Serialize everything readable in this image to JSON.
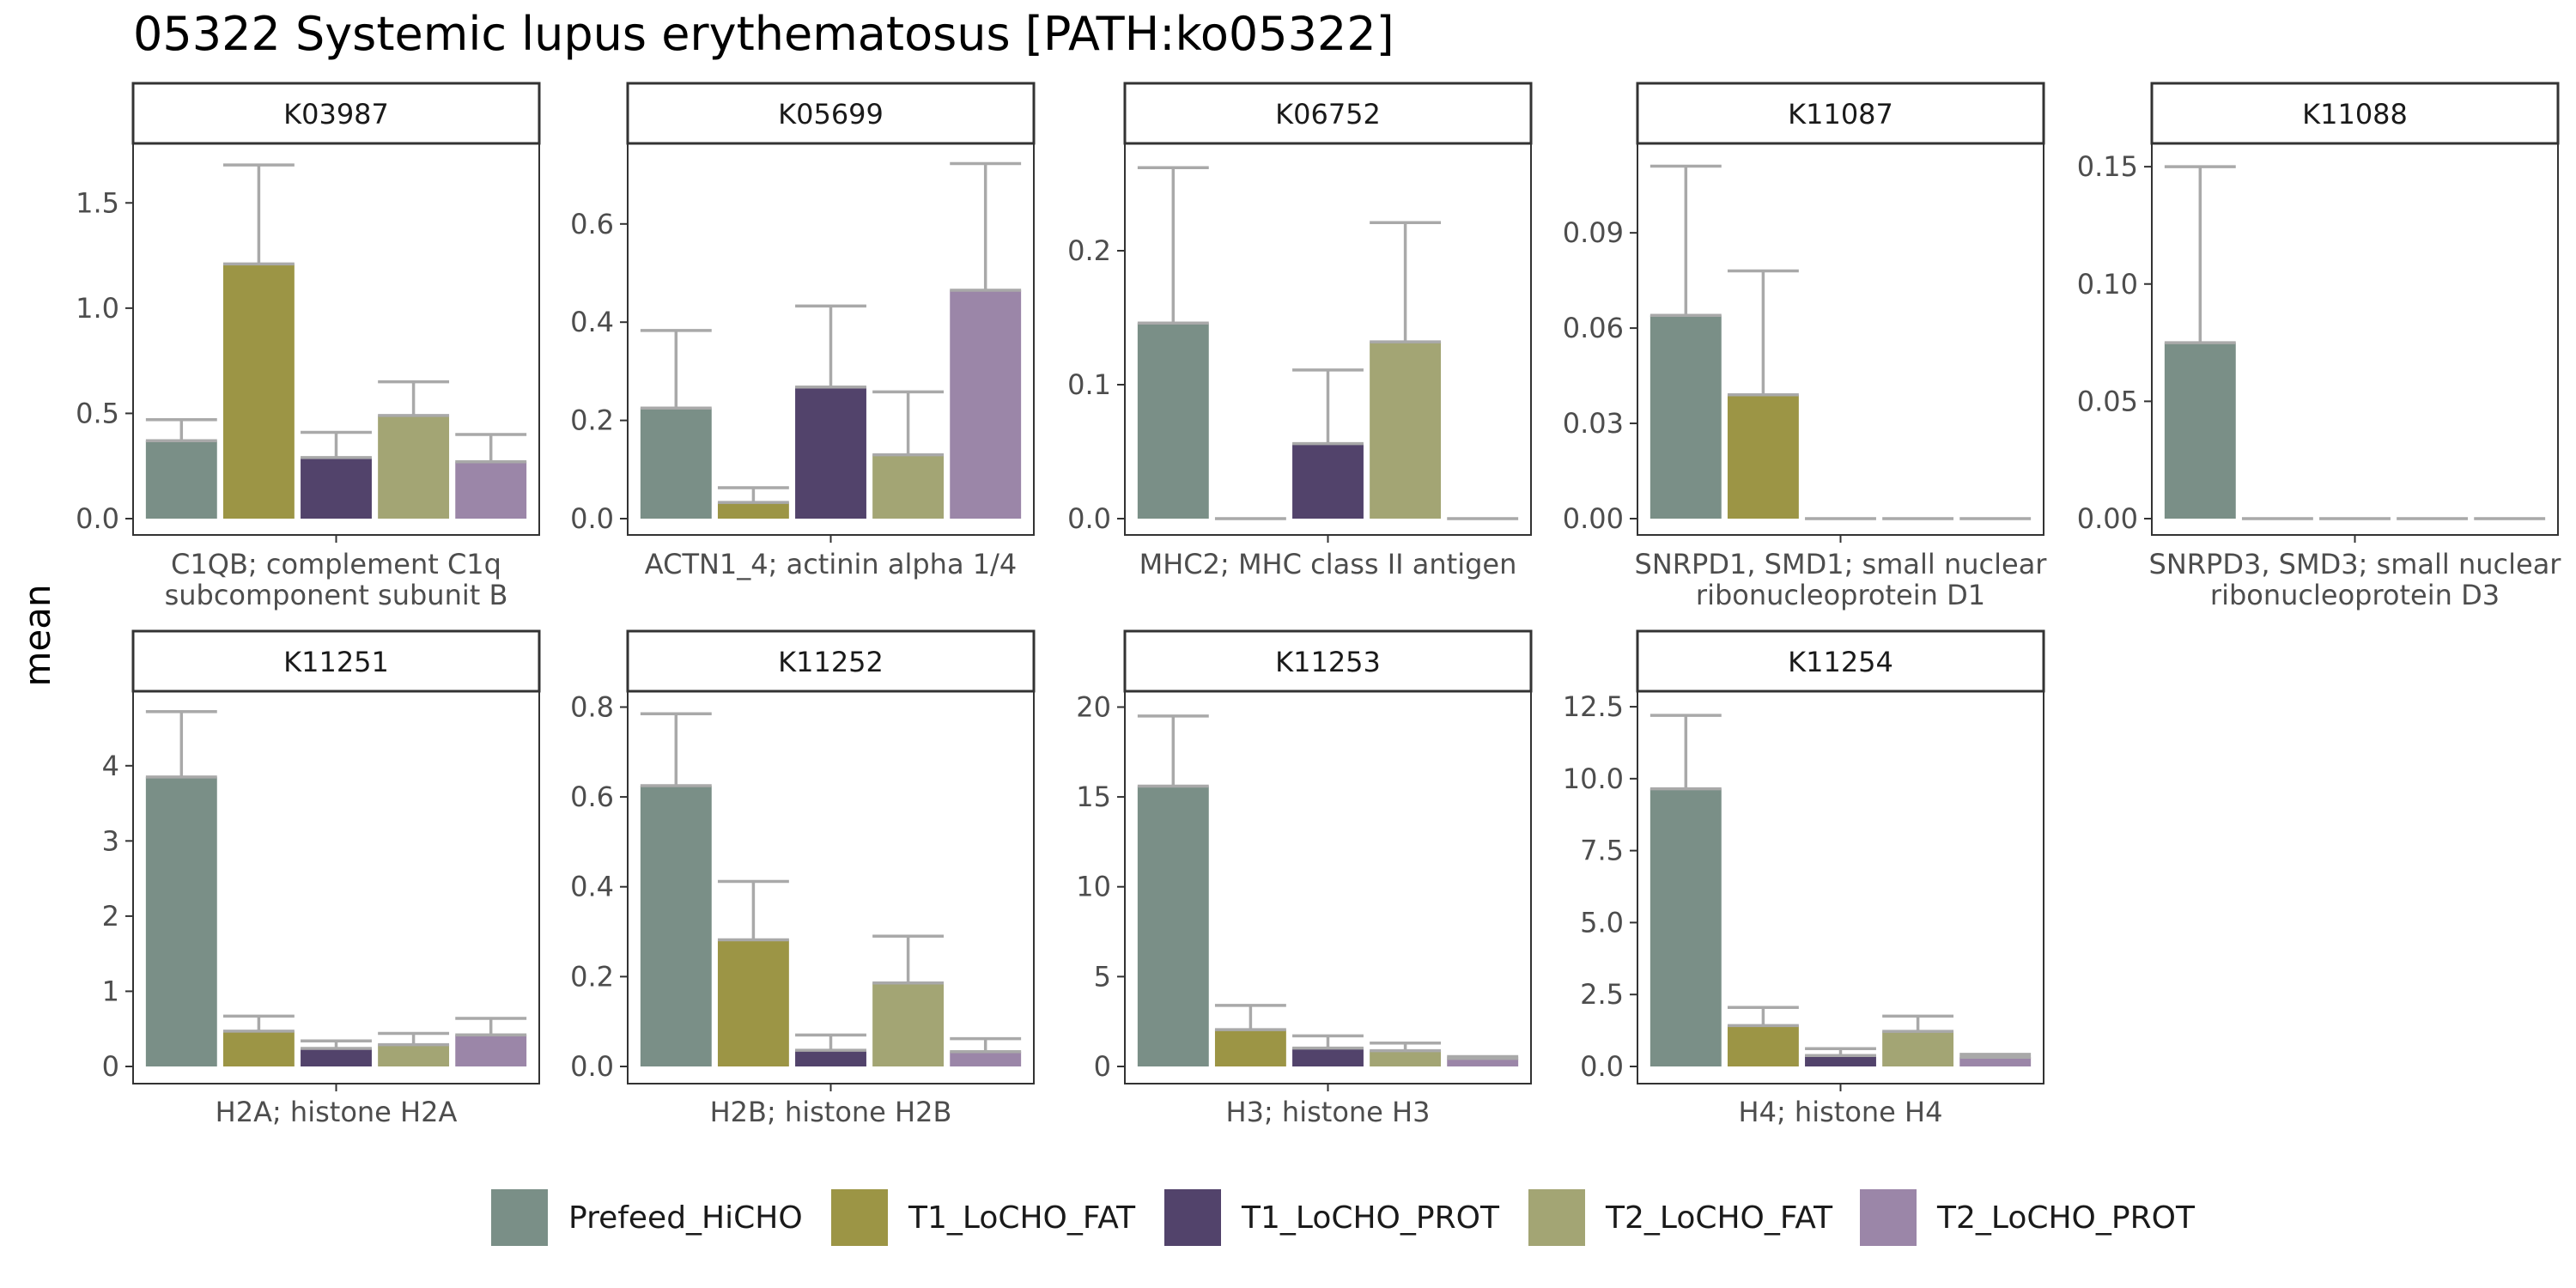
{
  "title": "05322 Systemic lupus erythematosus [PATH:ko05322]",
  "y_axis_label": "mean",
  "legend": [
    {
      "name": "Prefeed_HiCHO",
      "color": "#7a8f87"
    },
    {
      "name": "T1_LoCHO_FAT",
      "color": "#9c9545"
    },
    {
      "name": "T1_LoCHO_PROT",
      "color": "#52436b"
    },
    {
      "name": "T2_LoCHO_FAT",
      "color": "#a3a574"
    },
    {
      "name": "T2_LoCHO_PROT",
      "color": "#9b86a8"
    }
  ],
  "colors": {
    "error_bar": "#a9a9a9",
    "panel_border": "#333333",
    "strip_fill": "#ffffff"
  },
  "chart_data": [
    {
      "type": "bar",
      "facet": "K03987",
      "xlabel": [
        "C1QB; complement C1q",
        "subcomponent subunit B"
      ],
      "ylim": [
        0,
        1.75
      ],
      "ticks": [
        0.0,
        0.5,
        1.0,
        1.5
      ],
      "tick_labels": [
        "0.0",
        "0.5",
        "1.0",
        "1.5"
      ],
      "values": [
        0.37,
        1.21,
        0.29,
        0.49,
        0.27
      ],
      "error_upper": [
        0.47,
        1.68,
        0.41,
        0.65,
        0.4
      ]
    },
    {
      "type": "bar",
      "facet": "K05699",
      "xlabel": [
        "ACTN1_4; actinin alpha 1/4"
      ],
      "ylim": [
        0,
        0.75
      ],
      "ticks": [
        0.0,
        0.2,
        0.4,
        0.6
      ],
      "tick_labels": [
        "0.0",
        "0.2",
        "0.4",
        "0.6"
      ],
      "values": [
        0.225,
        0.033,
        0.268,
        0.13,
        0.465
      ],
      "error_upper": [
        0.383,
        0.063,
        0.433,
        0.258,
        0.723
      ]
    },
    {
      "type": "bar",
      "facet": "K06752",
      "xlabel": [
        "MHC2; MHC class II antigen"
      ],
      "ylim": [
        0,
        0.275
      ],
      "ticks": [
        0.0,
        0.1,
        0.2
      ],
      "tick_labels": [
        "0.0",
        "0.1",
        "0.2"
      ],
      "values": [
        0.146,
        0,
        0.056,
        0.132,
        0
      ],
      "error_upper": [
        0.262,
        0,
        0.111,
        0.221,
        0
      ]
    },
    {
      "type": "bar",
      "facet": "K11087",
      "xlabel": [
        "SNRPD1, SMD1; small nuclear",
        "ribonucleoprotein D1"
      ],
      "ylim": [
        0,
        0.116
      ],
      "ticks": [
        0.0,
        0.03,
        0.06,
        0.09
      ],
      "tick_labels": [
        "0.00",
        "0.03",
        "0.06",
        "0.09"
      ],
      "values": [
        0.064,
        0.039,
        0,
        0,
        0
      ],
      "error_upper": [
        0.111,
        0.078,
        0,
        0,
        0
      ]
    },
    {
      "type": "bar",
      "facet": "K11088",
      "xlabel": [
        "SNRPD3, SMD3; small nuclear",
        "ribonucleoprotein D3"
      ],
      "ylim": [
        0,
        0.157
      ],
      "ticks": [
        0.0,
        0.05,
        0.1,
        0.15
      ],
      "tick_labels": [
        "0.00",
        "0.05",
        "0.10",
        "0.15"
      ],
      "values": [
        0.075,
        0,
        0,
        0,
        0
      ],
      "error_upper": [
        0.15,
        0,
        0,
        0,
        0
      ]
    },
    {
      "type": "bar",
      "facet": "K11251",
      "xlabel": [
        "H2A; histone H2A"
      ],
      "ylim": [
        0,
        4.9
      ],
      "ticks": [
        0,
        1,
        2,
        3,
        4
      ],
      "tick_labels": [
        "0",
        "1",
        "2",
        "3",
        "4"
      ],
      "values": [
        3.85,
        0.47,
        0.24,
        0.29,
        0.42
      ],
      "error_upper": [
        4.72,
        0.67,
        0.34,
        0.44,
        0.64
      ]
    },
    {
      "type": "bar",
      "facet": "K11252",
      "xlabel": [
        "H2B; histone H2B"
      ],
      "ylim": [
        0,
        0.82
      ],
      "ticks": [
        0.0,
        0.2,
        0.4,
        0.6,
        0.8
      ],
      "tick_labels": [
        "0.0",
        "0.2",
        "0.4",
        "0.6",
        "0.8"
      ],
      "values": [
        0.625,
        0.282,
        0.036,
        0.186,
        0.033
      ],
      "error_upper": [
        0.785,
        0.412,
        0.07,
        0.29,
        0.062
      ]
    },
    {
      "type": "bar",
      "facet": "K11253",
      "xlabel": [
        "H3; histone H3"
      ],
      "ylim": [
        0,
        20.5
      ],
      "ticks": [
        0,
        5,
        10,
        15,
        20
      ],
      "tick_labels": [
        "0",
        "5",
        "10",
        "15",
        "20"
      ],
      "values": [
        15.6,
        2.05,
        1.02,
        0.88,
        0.45
      ],
      "error_upper": [
        19.5,
        3.4,
        1.7,
        1.3,
        0.55
      ]
    },
    {
      "type": "bar",
      "facet": "K11254",
      "xlabel": [
        "H4; histone H4"
      ],
      "ylim": [
        0,
        12.8
      ],
      "ticks": [
        0.0,
        2.5,
        5.0,
        7.5,
        10.0,
        12.5
      ],
      "tick_labels": [
        "0.0",
        "2.5",
        "5.0",
        "7.5",
        "10.0",
        "12.5"
      ],
      "values": [
        9.65,
        1.42,
        0.38,
        1.22,
        0.32
      ],
      "error_upper": [
        12.2,
        2.05,
        0.62,
        1.75,
        0.42
      ]
    }
  ]
}
